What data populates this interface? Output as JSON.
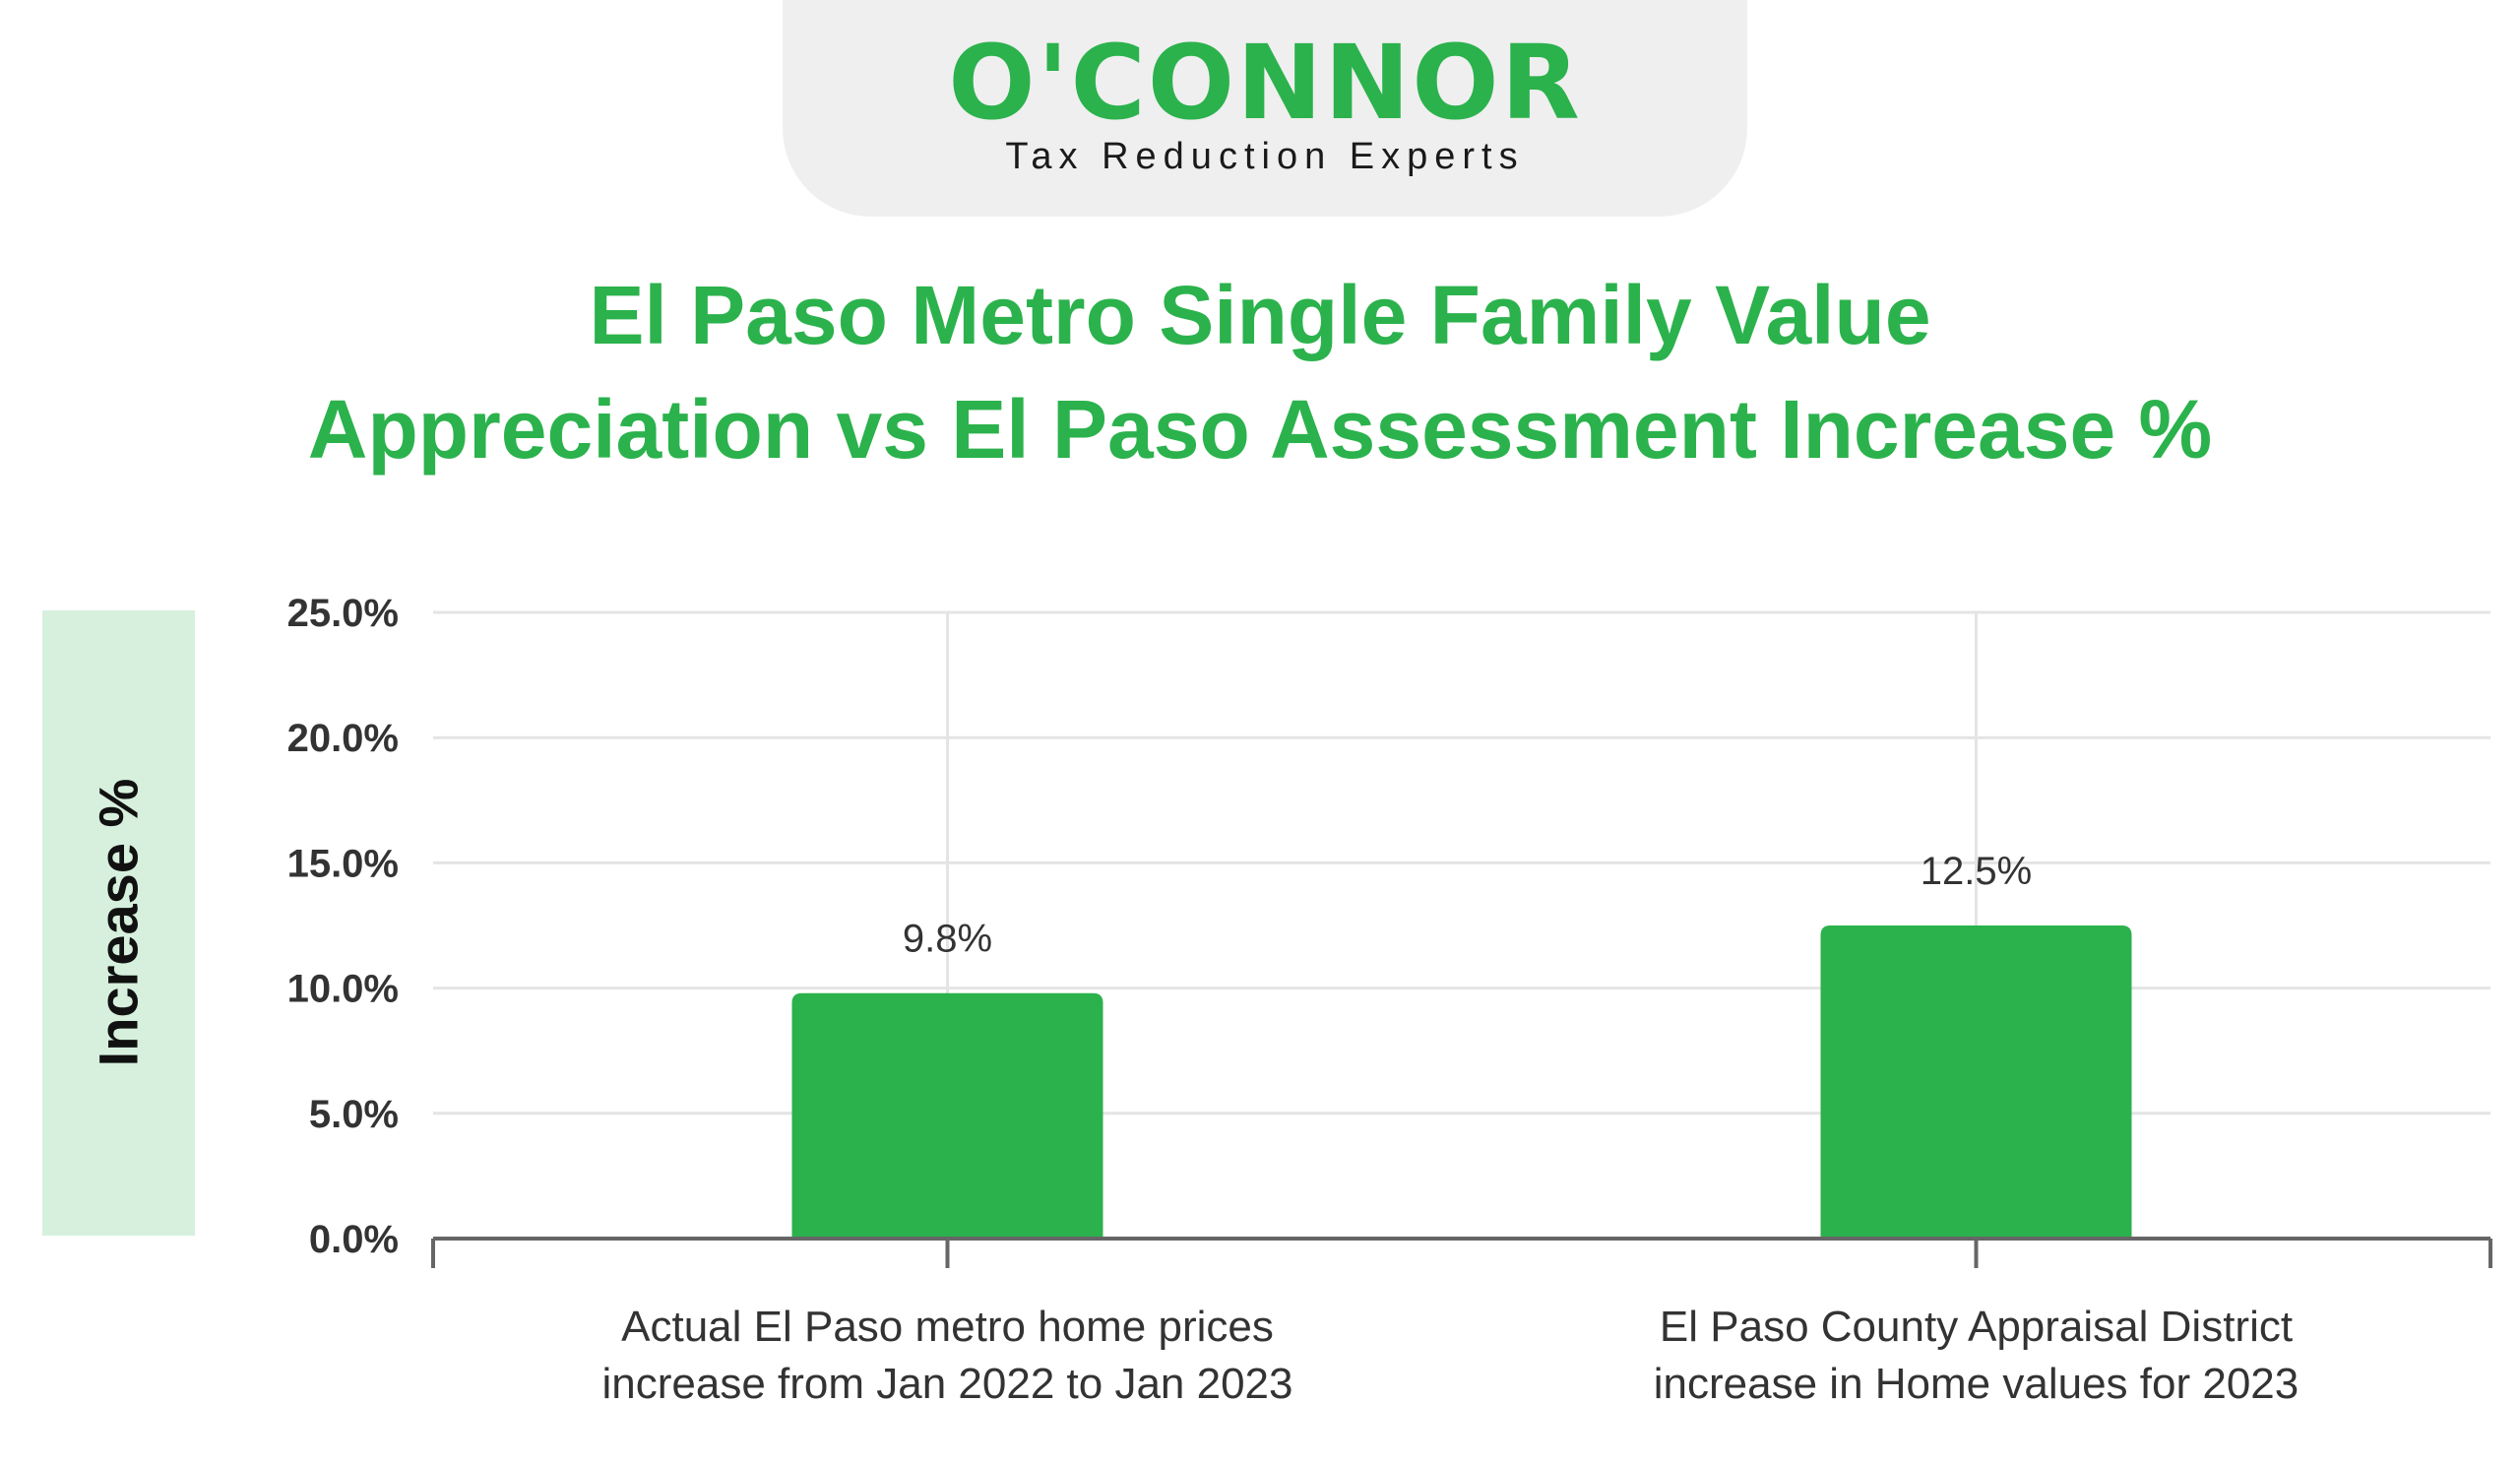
{
  "logo": {
    "wordmark": "O'CONNOR",
    "tagline": "Tax Reduction Experts"
  },
  "colors": {
    "brand_green": "#2bb24c",
    "axis_band": "#d6f0dd",
    "grid": "#e4e4e4",
    "axis": "#666666",
    "text": "#333333"
  },
  "chart_data": {
    "type": "bar",
    "title": "El Paso Metro Single Family Value Appreciation vs El Paso Assessment Increase %",
    "title_lines": [
      "El Paso Metro Single Family Value",
      "Appreciation vs El Paso Assessment Increase %"
    ],
    "ylabel": "Increase %",
    "xlabel": "",
    "ylim": [
      0,
      25
    ],
    "yticks": [
      0,
      5,
      10,
      15,
      20,
      25
    ],
    "ytick_labels": [
      "0.0%",
      "5.0%",
      "10.0%",
      "15.0%",
      "20.0%",
      "25.0%"
    ],
    "categories": [
      [
        "Actual El Paso metro home prices",
        "increase from Jan 2022 to Jan 2023"
      ],
      [
        "El Paso County Appraisal District",
        "increase in Home values for 2023"
      ]
    ],
    "values": [
      9.8,
      12.5
    ],
    "data_labels": [
      "9.8%",
      "12.5%"
    ],
    "grid": true,
    "bar_color": "#2bb24c"
  }
}
